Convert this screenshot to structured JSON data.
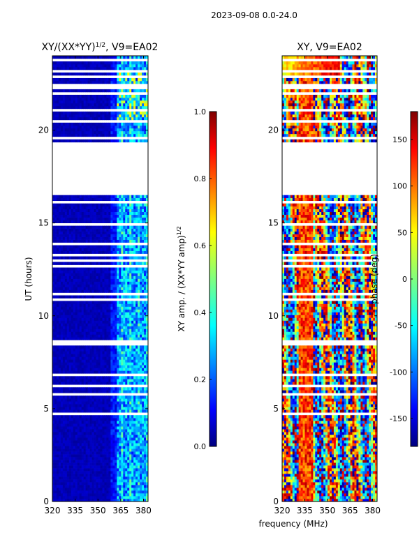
{
  "figure": {
    "suptitle": "2023-09-08 0.0-24.0",
    "shared_xlabel": "frequency (MHz)",
    "shared_ylabel": "UT (hours)"
  },
  "chart_data": [
    {
      "type": "heatmap",
      "title": "XY/(XX*YY)",
      "title_exponent": "1/2",
      "title_suffix": ", V9=EA02",
      "xlabel": "frequency (MHz)",
      "ylabel": "UT (hours)",
      "xlim": [
        320,
        383
      ],
      "ylim": [
        0,
        24
      ],
      "xticks": [
        320,
        335,
        350,
        365,
        380
      ],
      "yticks": [
        0,
        5,
        10,
        15,
        20
      ],
      "data_gap_hours": [
        [
          16.5,
          19.3
        ]
      ],
      "bright_band_mhz": [
        362,
        383
      ],
      "colorbar": {
        "label": "XY amp. / (XX*YY amp)",
        "label_exponent": "1/2",
        "range": [
          0.0,
          1.0
        ],
        "ticks": [
          "0.0",
          "0.2",
          "0.4",
          "0.6",
          "0.8",
          "1.0"
        ],
        "colormap": "jet"
      }
    },
    {
      "type": "heatmap",
      "title": "XY, V9=EA02",
      "xlabel": "frequency (MHz)",
      "ylabel": "",
      "xlim": [
        320,
        383
      ],
      "ylim": [
        0,
        24
      ],
      "xticks": [
        320,
        335,
        350,
        365,
        380
      ],
      "yticks": [
        0,
        5,
        10,
        15,
        20
      ],
      "data_gap_hours": [
        [
          16.5,
          19.3
        ]
      ],
      "colorbar": {
        "label": "phase (deg)",
        "range": [
          -180,
          180
        ],
        "ticks": [
          "-150",
          "-100",
          "-50",
          "0",
          "50",
          "100",
          "150"
        ],
        "colormap": "jet"
      }
    }
  ],
  "colors": {
    "jet": [
      "#00007f",
      "#0000ff",
      "#007fff",
      "#00ffff",
      "#7fff7f",
      "#ffff00",
      "#ff7f00",
      "#ff0000",
      "#7f0000"
    ]
  }
}
